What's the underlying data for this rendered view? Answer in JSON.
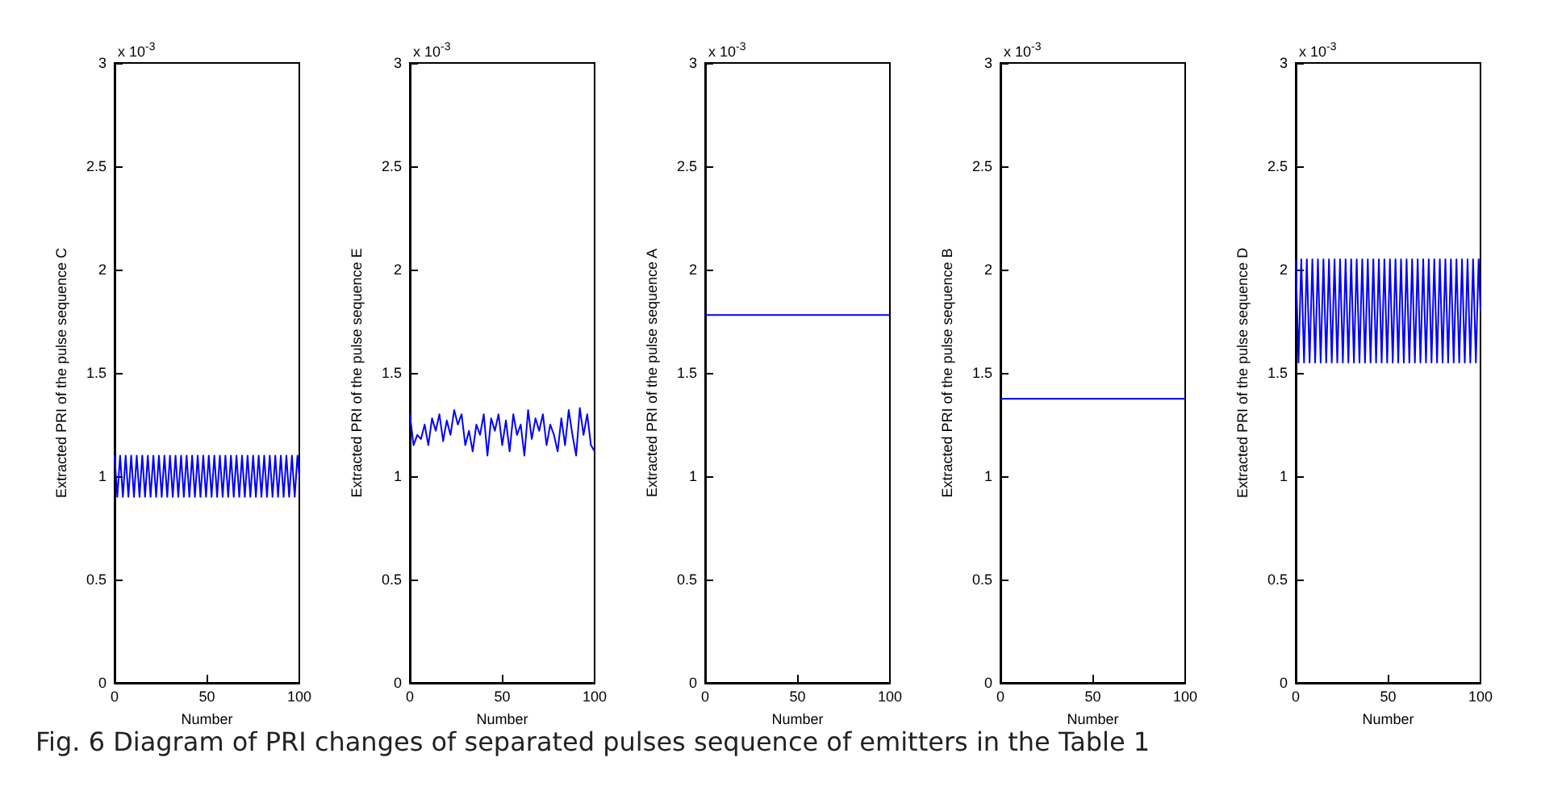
{
  "chart_data": [
    {
      "type": "line",
      "ylabel": "Extracted PRI of the pulse sequence C",
      "xlabel": "Number",
      "annotations": [
        "x 10$^{-3}$",
        "Fig. 6  Diagram of PRI changes of separated pulses sequence of emitters in the Table 1"
      ],
      "color": "#0000ff",
      "xlim": [
        0,
        100
      ],
      "xticks": [
        0,
        50,
        100
      ],
      "ylim": [
        0,
        3
      ],
      "yticks": [
        0,
        0.5,
        1,
        1.5,
        2,
        2.5,
        3
      ],
      "grid": false,
      "marker": "none",
      "line_style": "solid",
      "x": [
        0,
        1.5,
        3,
        4.5,
        6,
        7.5,
        9,
        10.5,
        12,
        13.5,
        15,
        16.5,
        18,
        19.5,
        21,
        22.5,
        24,
        25.5,
        27,
        28.5,
        30,
        31.5,
        33,
        34.5,
        36,
        37.5,
        39,
        40.5,
        42,
        43.5,
        45,
        46.5,
        48,
        49.5,
        51,
        52.5,
        54,
        55.5,
        57,
        58.5,
        60,
        61.5,
        63,
        64.5,
        66,
        67.5,
        69,
        70.5,
        72,
        73.5,
        75,
        76.5,
        78,
        79.5,
        81,
        82.5,
        84,
        85.5,
        87,
        88.5,
        90,
        91.5,
        93,
        94.5,
        96,
        97.5,
        99,
        100
      ],
      "values": [
        1.1,
        0.9,
        1.1,
        0.9,
        1.1,
        0.9,
        1.1,
        0.9,
        1.1,
        0.9,
        1.1,
        0.9,
        1.1,
        0.9,
        1.1,
        0.9,
        1.1,
        0.9,
        1.1,
        0.9,
        1.1,
        0.9,
        1.1,
        0.9,
        1.1,
        0.9,
        1.1,
        0.9,
        1.1,
        0.9,
        1.1,
        0.9,
        1.1,
        0.9,
        1.1,
        0.9,
        1.1,
        0.9,
        1.1,
        0.9,
        1.1,
        0.9,
        1.1,
        0.9,
        1.1,
        0.9,
        1.1,
        0.9,
        1.1,
        0.9,
        1.1,
        0.9,
        1.1,
        0.9,
        1.1,
        0.9,
        1.1,
        0.9,
        1.1,
        0.9,
        1.1,
        0.9,
        1.1,
        0.9,
        1.1,
        0.9,
        1.1,
        1.0
      ]
    },
    {
      "type": "line",
      "ylabel": "Extracted PRI of the pulse sequence E",
      "xlabel": "Number",
      "annotations": [
        "x 10$^{-3}$"
      ],
      "color": "#0000ff",
      "xlim": [
        0,
        100
      ],
      "xticks": [
        0,
        50,
        100
      ],
      "ylim": [
        0,
        3
      ],
      "yticks": [
        0,
        0.5,
        1,
        1.5,
        2,
        2.5,
        3
      ],
      "grid": false,
      "marker": "none",
      "line_style": "solid",
      "x": [
        0,
        2,
        4,
        6,
        8,
        10,
        12,
        14,
        16,
        18,
        20,
        22,
        24,
        26,
        28,
        30,
        32,
        34,
        36,
        38,
        40,
        42,
        44,
        46,
        48,
        50,
        52,
        54,
        56,
        58,
        60,
        62,
        64,
        66,
        68,
        70,
        72,
        74,
        76,
        78,
        80,
        82,
        84,
        86,
        88,
        90,
        92,
        94,
        96,
        98,
        100
      ],
      "values": [
        1.3,
        1.15,
        1.2,
        1.18,
        1.25,
        1.15,
        1.28,
        1.22,
        1.3,
        1.17,
        1.27,
        1.2,
        1.32,
        1.25,
        1.3,
        1.15,
        1.22,
        1.12,
        1.25,
        1.2,
        1.3,
        1.1,
        1.28,
        1.22,
        1.3,
        1.15,
        1.27,
        1.12,
        1.3,
        1.2,
        1.25,
        1.1,
        1.32,
        1.18,
        1.28,
        1.22,
        1.3,
        1.15,
        1.25,
        1.2,
        1.12,
        1.28,
        1.15,
        1.32,
        1.2,
        1.1,
        1.33,
        1.2,
        1.3,
        1.15,
        1.12
      ]
    },
    {
      "type": "line",
      "ylabel": "Extracted PRI of the pulse sequence A",
      "xlabel": "Number",
      "annotations": [
        "x 10$^{-3}$"
      ],
      "color": "#0000ff",
      "xlim": [
        0,
        100
      ],
      "xticks": [
        0,
        50,
        100
      ],
      "ylim": [
        0,
        3
      ],
      "yticks": [
        0,
        0.5,
        1,
        1.5,
        2,
        2.5,
        3
      ],
      "grid": false,
      "marker": "none",
      "line_style": "solid",
      "x": [
        0,
        100
      ],
      "values": [
        1.78,
        1.78
      ]
    },
    {
      "type": "line",
      "ylabel": "Extracted PRI of the pulse sequence B",
      "xlabel": "Number",
      "annotations": [
        "x 10$^{-3}$"
      ],
      "color": "#0000ff",
      "xlim": [
        0,
        100
      ],
      "xticks": [
        0,
        50,
        100
      ],
      "ylim": [
        0,
        3
      ],
      "yticks": [
        0,
        0.5,
        1,
        1.5,
        2,
        2.5,
        3
      ],
      "grid": false,
      "marker": "none",
      "line_style": "solid",
      "x": [
        0,
        100
      ],
      "values": [
        1.375,
        1.375
      ]
    },
    {
      "type": "line",
      "ylabel": "Extracted PRI of the pulse sequence D",
      "xlabel": "Number",
      "annotations": [
        "x 10$^{-3}$"
      ],
      "color": "#0000ff",
      "xlim": [
        0,
        100
      ],
      "xticks": [
        0,
        50,
        100
      ],
      "ylim": [
        0,
        3
      ],
      "yticks": [
        0,
        0.5,
        1,
        1.5,
        2,
        2.5,
        3
      ],
      "grid": false,
      "marker": "none",
      "line_style": "solid",
      "x": [
        0,
        1.5,
        3,
        4.5,
        6,
        7.5,
        9,
        10.5,
        12,
        13.5,
        15,
        16.5,
        18,
        19.5,
        21,
        22.5,
        24,
        25.5,
        27,
        28.5,
        30,
        31.5,
        33,
        34.5,
        36,
        37.5,
        39,
        40.5,
        42,
        43.5,
        45,
        46.5,
        48,
        49.5,
        51,
        52.5,
        54,
        55.5,
        57,
        58.5,
        60,
        61.5,
        63,
        64.5,
        66,
        67.5,
        69,
        70.5,
        72,
        73.5,
        75,
        76.5,
        78,
        79.5,
        81,
        82.5,
        84,
        85.5,
        87,
        88.5,
        90,
        91.5,
        93,
        94.5,
        96,
        97.5,
        99,
        100
      ],
      "values": [
        2.05,
        1.55,
        2.05,
        1.55,
        2.05,
        1.55,
        2.05,
        1.55,
        2.05,
        1.55,
        2.05,
        1.55,
        2.05,
        1.55,
        2.05,
        1.55,
        2.05,
        1.55,
        2.05,
        1.55,
        2.05,
        1.55,
        2.05,
        1.55,
        2.05,
        1.55,
        2.05,
        1.55,
        2.05,
        1.55,
        2.05,
        1.55,
        2.05,
        1.55,
        2.05,
        1.55,
        2.05,
        1.55,
        2.05,
        1.55,
        2.05,
        1.55,
        2.05,
        1.55,
        2.05,
        1.55,
        2.05,
        1.55,
        2.05,
        1.55,
        2.05,
        1.55,
        2.05,
        1.55,
        2.05,
        1.55,
        2.05,
        1.55,
        2.05,
        1.55,
        2.05,
        1.55,
        2.05,
        1.55,
        2.05,
        1.55,
        2.05,
        1.8
      ]
    }
  ]
}
